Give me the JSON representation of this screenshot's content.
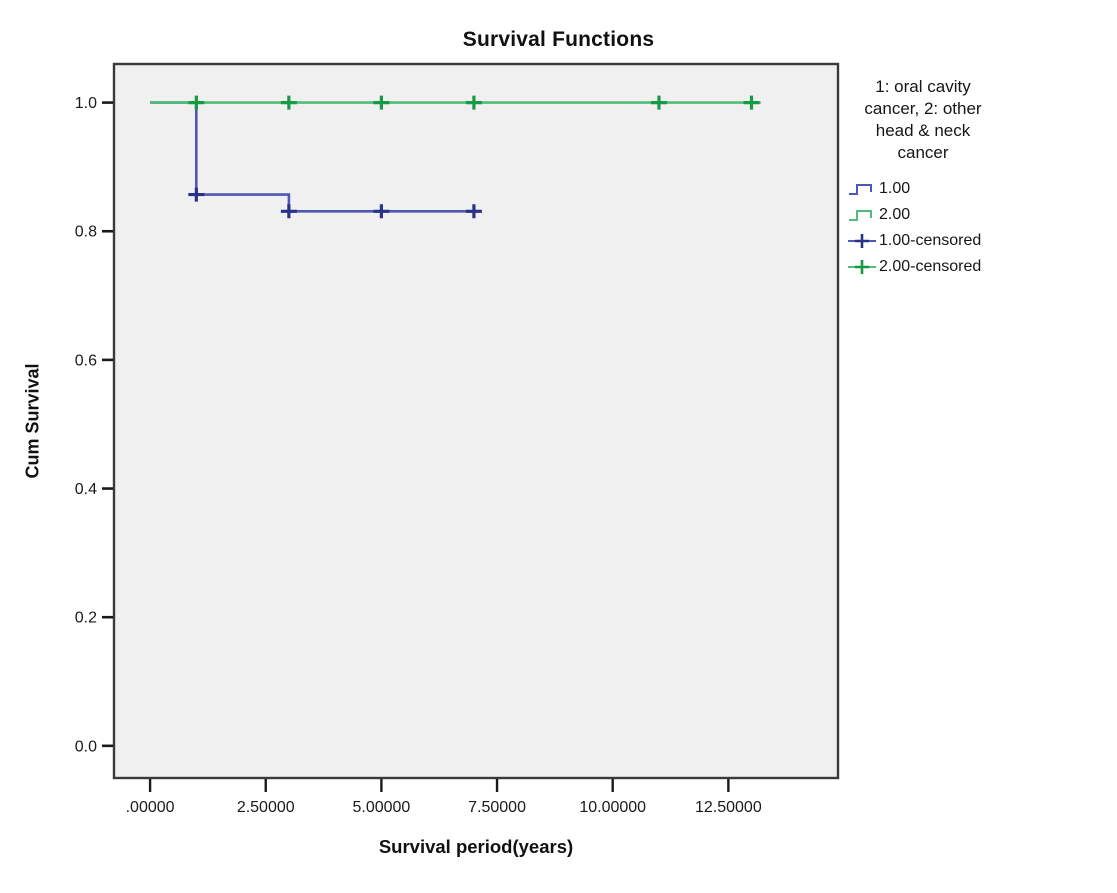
{
  "figure": {
    "title": "Survival Functions",
    "x_axis_title": "Survival period(years)",
    "y_axis_title": "Cum Survival"
  },
  "legend": {
    "title": "1: oral cavity cancer, 2: other head & neck cancer",
    "entries": [
      {
        "label": "1.00",
        "glyph": "step",
        "color": "#4d57b4",
        "mark_color": "#4d57b4"
      },
      {
        "label": "2.00",
        "glyph": "step",
        "color": "#52bd78",
        "mark_color": "#52bd78"
      },
      {
        "label": "1.00-censored",
        "glyph": "censor",
        "color": "#4d57b4",
        "mark_color": "#2a3288"
      },
      {
        "label": "2.00-censored",
        "glyph": "censor",
        "color": "#52bd78",
        "mark_color": "#169a43"
      }
    ]
  },
  "chart_data": {
    "type": "line",
    "subtype": "kaplan-meier-step",
    "title": "Survival Functions",
    "xlabel": "Survival period(years)",
    "ylabel": "Cum Survival",
    "grid": false,
    "legend_position": "right",
    "panel_bg": "#f0f0f1",
    "panel_border": "#3a3a3a",
    "xlim": [
      -0.78,
      14.87
    ],
    "ylim": [
      -0.05,
      1.06
    ],
    "x_ticks": {
      "values": [
        0,
        2.5,
        5,
        7.5,
        10,
        12.5
      ],
      "labels": [
        ".00000",
        "2.50000",
        "5.00000",
        "7.50000",
        "10.00000",
        "12.50000"
      ]
    },
    "y_ticks": {
      "values": [
        0,
        0.2,
        0.4,
        0.6,
        0.8,
        1.0
      ],
      "labels": [
        "0.0",
        "0.2",
        "0.4",
        "0.6",
        "0.8",
        "1.0"
      ]
    },
    "series": [
      {
        "name": "1.00",
        "group": "oral cavity cancer",
        "color": "#4d57b4",
        "points": [
          [
            0,
            1.0
          ],
          [
            1,
            1.0
          ],
          [
            1,
            0.857
          ],
          [
            3,
            0.857
          ],
          [
            3,
            0.831
          ],
          [
            7.1,
            0.831
          ]
        ]
      },
      {
        "name": "2.00",
        "group": "other head & neck cancer",
        "color": "#52bd78",
        "points": [
          [
            0,
            1.0
          ],
          [
            13.2,
            1.0
          ]
        ]
      }
    ],
    "censored": [
      {
        "name": "1.00-censored",
        "color": "#2a3288",
        "points": [
          [
            1,
            0.857
          ],
          [
            3,
            0.831
          ],
          [
            5,
            0.831
          ],
          [
            7,
            0.831
          ]
        ]
      },
      {
        "name": "2.00-censored",
        "color": "#169a43",
        "points": [
          [
            1,
            1.0
          ],
          [
            3,
            1.0
          ],
          [
            5,
            1.0
          ],
          [
            7,
            1.0
          ],
          [
            11,
            1.0
          ],
          [
            13,
            1.0
          ]
        ]
      }
    ]
  }
}
